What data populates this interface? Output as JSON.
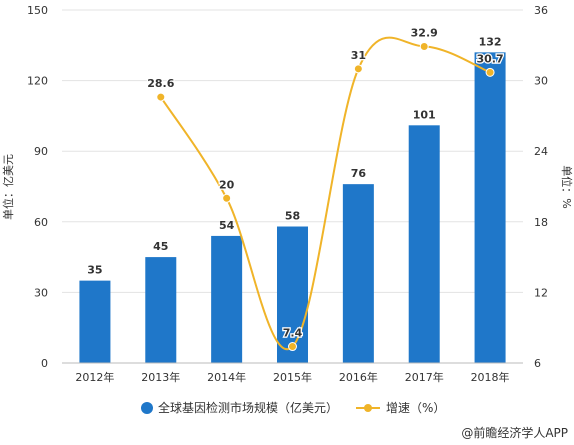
{
  "chart_data": {
    "type": "bar",
    "categories": [
      "2012年",
      "2013年",
      "2014年",
      "2015年",
      "2016年",
      "2017年",
      "2018年"
    ],
    "series": [
      {
        "name": "全球基因检测市场规模（亿美元）",
        "type": "bar",
        "axis": "left",
        "values": [
          35,
          45,
          54,
          58,
          76,
          101,
          132
        ],
        "color": "#1f77c9"
      },
      {
        "name": "增速（%）",
        "type": "line",
        "axis": "right",
        "values": [
          null,
          28.6,
          20,
          7.4,
          31,
          32.9,
          30.7
        ],
        "color": "#f0b429"
      }
    ],
    "ylabel": "单位：亿美元",
    "y2label": "单位：%",
    "ylim": [
      0,
      150
    ],
    "yticks": [
      0,
      30,
      60,
      90,
      120,
      150
    ],
    "y2lim": [
      6,
      36
    ],
    "y2ticks": [
      6,
      12,
      18,
      24,
      30,
      36
    ],
    "grid": "horizontal",
    "legend": "bottom-center"
  },
  "footer": {
    "source": "@前瞻经济学人APP"
  }
}
